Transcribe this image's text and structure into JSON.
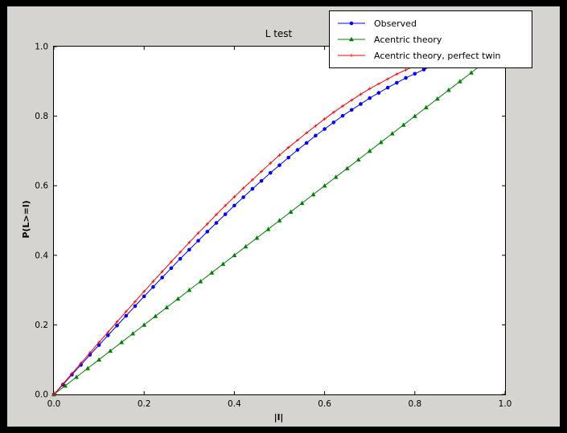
{
  "window": {
    "border_color": "#000000",
    "figure_bg": "#d6d4d0",
    "axes_bg": "#ffffff"
  },
  "chart_data": {
    "type": "line",
    "title": "L test",
    "xlabel": "|l|",
    "ylabel": "P(L>=l)",
    "xlim": [
      0,
      1
    ],
    "ylim": [
      0,
      1
    ],
    "grid": false,
    "legend_position": "upper right",
    "xticks": [
      0,
      0.2,
      0.4,
      0.6,
      0.8,
      1.0
    ],
    "xtick_labels": [
      "0.0",
      "0.2",
      "0.4",
      "0.6",
      "0.8",
      "1.0"
    ],
    "yticks": [
      0,
      0.2,
      0.4,
      0.6,
      0.8,
      1.0
    ],
    "ytick_labels": [
      "0.0",
      "0.2",
      "0.4",
      "0.6",
      "0.8",
      "1.0"
    ],
    "series": [
      {
        "name": "Observed",
        "color": "#0000ff",
        "marker": "circle",
        "x": [
          0,
          0.02,
          0.04,
          0.06,
          0.08,
          0.1,
          0.12,
          0.14,
          0.16,
          0.18,
          0.2,
          0.22,
          0.24,
          0.26,
          0.28,
          0.3,
          0.32,
          0.34,
          0.36,
          0.38,
          0.4,
          0.42,
          0.44,
          0.46,
          0.48,
          0.5,
          0.52,
          0.54,
          0.56,
          0.58,
          0.6,
          0.62,
          0.64,
          0.66,
          0.68,
          0.7,
          0.72,
          0.74,
          0.76,
          0.78,
          0.8,
          0.82,
          0.84,
          0.86
        ],
        "y": [
          0,
          0.028,
          0.057,
          0.085,
          0.114,
          0.142,
          0.17,
          0.198,
          0.226,
          0.254,
          0.282,
          0.309,
          0.336,
          0.363,
          0.39,
          0.416,
          0.442,
          0.468,
          0.493,
          0.518,
          0.543,
          0.567,
          0.591,
          0.614,
          0.637,
          0.659,
          0.681,
          0.703,
          0.723,
          0.744,
          0.763,
          0.782,
          0.801,
          0.818,
          0.835,
          0.852,
          0.867,
          0.882,
          0.896,
          0.91,
          0.922,
          0.934,
          0.945,
          0.956
        ]
      },
      {
        "name": "Acentric theory",
        "color": "#008000",
        "marker": "triangle",
        "x": [
          0,
          0.025,
          0.05,
          0.075,
          0.1,
          0.125,
          0.15,
          0.175,
          0.2,
          0.225,
          0.25,
          0.275,
          0.3,
          0.325,
          0.35,
          0.375,
          0.4,
          0.425,
          0.45,
          0.475,
          0.5,
          0.525,
          0.55,
          0.575,
          0.6,
          0.625,
          0.65,
          0.675,
          0.7,
          0.725,
          0.75,
          0.775,
          0.8,
          0.825,
          0.85,
          0.875,
          0.9,
          0.925,
          0.95,
          0.975
        ],
        "y": [
          0,
          0.025,
          0.05,
          0.075,
          0.1,
          0.125,
          0.15,
          0.175,
          0.2,
          0.225,
          0.25,
          0.275,
          0.3,
          0.325,
          0.35,
          0.375,
          0.4,
          0.425,
          0.45,
          0.475,
          0.5,
          0.525,
          0.55,
          0.575,
          0.6,
          0.625,
          0.65,
          0.675,
          0.7,
          0.725,
          0.75,
          0.775,
          0.8,
          0.825,
          0.85,
          0.875,
          0.9,
          0.925,
          0.95,
          0.975
        ]
      },
      {
        "name": "Acentric theory, perfect twin",
        "color": "#ff0000",
        "marker": "plus",
        "x": [
          0,
          0.02,
          0.04,
          0.06,
          0.08,
          0.1,
          0.12,
          0.14,
          0.16,
          0.18,
          0.2,
          0.22,
          0.24,
          0.26,
          0.28,
          0.3,
          0.32,
          0.34,
          0.36,
          0.38,
          0.4,
          0.42,
          0.44,
          0.46,
          0.48,
          0.5,
          0.52,
          0.54,
          0.56,
          0.58,
          0.6,
          0.62,
          0.64,
          0.66,
          0.68,
          0.7,
          0.72,
          0.74,
          0.76,
          0.78,
          0.8,
          0.82,
          0.84
        ],
        "y": [
          0,
          0.03,
          0.06,
          0.09,
          0.12,
          0.15,
          0.179,
          0.209,
          0.238,
          0.267,
          0.296,
          0.325,
          0.353,
          0.381,
          0.409,
          0.437,
          0.464,
          0.49,
          0.517,
          0.543,
          0.568,
          0.593,
          0.617,
          0.641,
          0.665,
          0.688,
          0.71,
          0.731,
          0.752,
          0.772,
          0.792,
          0.811,
          0.829,
          0.846,
          0.863,
          0.879,
          0.893,
          0.907,
          0.921,
          0.933,
          0.944,
          0.954,
          0.964
        ]
      }
    ]
  }
}
